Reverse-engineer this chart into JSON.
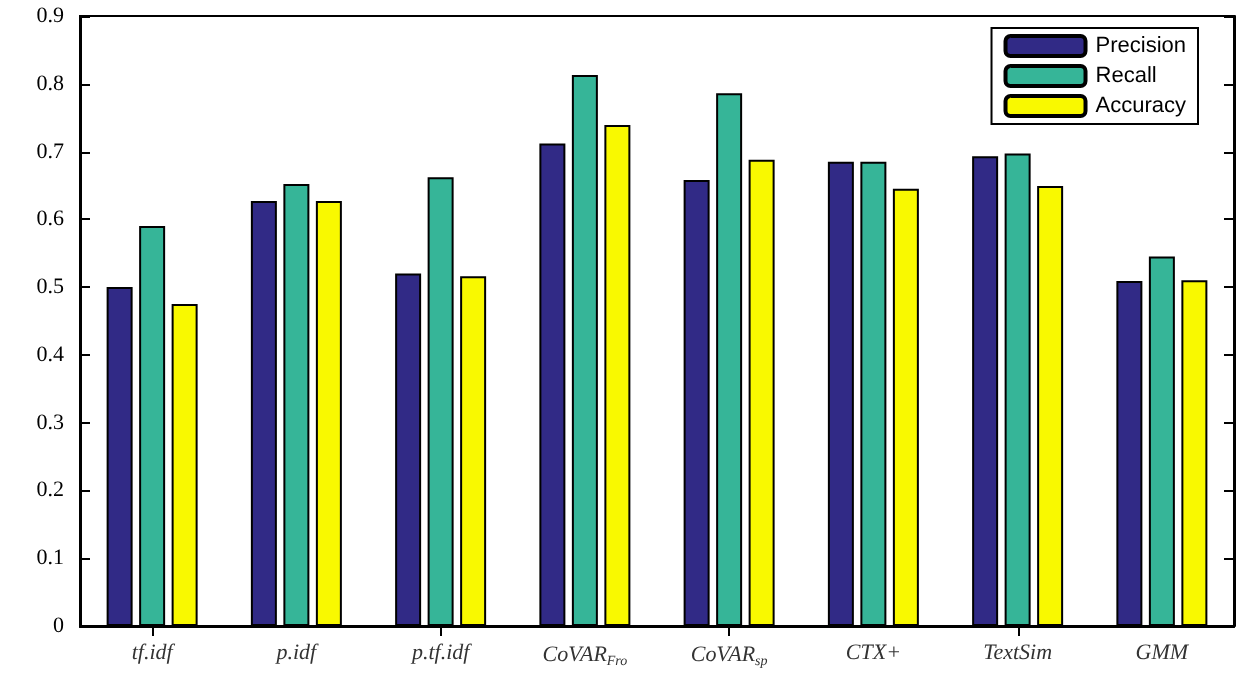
{
  "chart_data": {
    "type": "bar",
    "categories": [
      "tf.idf",
      "p.idf",
      "p.tf.idf",
      "CoVAR$_{Fro}$",
      "CoVAR$_{sp}$",
      "CTX+",
      "TextSim",
      "GMM"
    ],
    "series": [
      {
        "name": "Precision",
        "color": "#312a86",
        "values": [
          0.5,
          0.627,
          0.52,
          0.712,
          0.658,
          0.685,
          0.693,
          0.509
        ]
      },
      {
        "name": "Recall",
        "color": "#36b598",
        "values": [
          0.59,
          0.652,
          0.662,
          0.813,
          0.786,
          0.685,
          0.697,
          0.545
        ]
      },
      {
        "name": "Accuracy",
        "color": "#f9f900",
        "values": [
          0.475,
          0.627,
          0.516,
          0.739,
          0.688,
          0.645,
          0.649,
          0.51
        ]
      }
    ],
    "ylim": [
      0,
      0.9
    ],
    "yticks": [
      0,
      0.1,
      0.2,
      0.3,
      0.4,
      0.5,
      0.6,
      0.7,
      0.8,
      0.9
    ],
    "grid": false,
    "legend": "top right"
  }
}
